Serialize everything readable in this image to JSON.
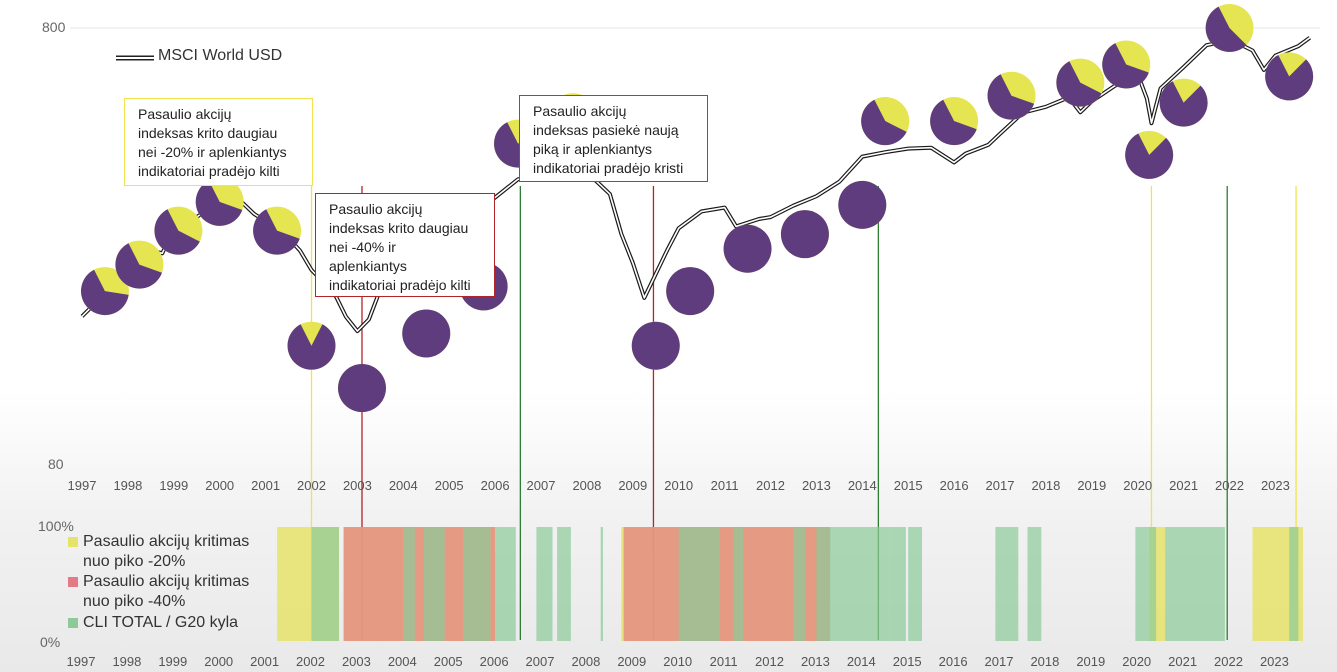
{
  "chart_data": [
    {
      "type": "line",
      "series": [
        {
          "name": "MSCI World USD",
          "x": [
            1997.0,
            1997.5,
            1998.0,
            1998.5,
            1998.75,
            1999.0,
            1999.5,
            2000.0,
            2000.25,
            2000.75,
            2001.0,
            2001.5,
            2001.75,
            2002.0,
            2002.5,
            2002.75,
            2003.0,
            2003.25,
            2003.5,
            2004.0,
            2004.5,
            2005.0,
            2005.5,
            2006.0,
            2006.5,
            2007.0,
            2007.5,
            2007.75,
            2008.0,
            2008.5,
            2008.75,
            2009.0,
            2009.25,
            2009.75,
            2010.0,
            2010.5,
            2011.0,
            2011.25,
            2011.75,
            2012.0,
            2012.5,
            2013.0,
            2013.5,
            2014.0,
            2014.5,
            2015.0,
            2015.5,
            2016.0,
            2016.25,
            2016.75,
            2017.0,
            2017.5,
            2018.0,
            2018.5,
            2018.75,
            2019.0,
            2019.5,
            2020.0,
            2020.2,
            2020.3,
            2020.5,
            2021.0,
            2021.5,
            2021.9,
            2022.0,
            2022.5,
            2022.75,
            2023.0,
            2023.5,
            2023.75
          ],
          "y": [
            175,
            200,
            230,
            250,
            245,
            275,
            300,
            320,
            335,
            305,
            285,
            265,
            250,
            220,
            200,
            175,
            160,
            175,
            200,
            245,
            265,
            270,
            300,
            330,
            355,
            375,
            400,
            405,
            380,
            330,
            270,
            235,
            190,
            250,
            280,
            300,
            315,
            280,
            290,
            300,
            310,
            330,
            360,
            400,
            420,
            425,
            420,
            400,
            410,
            430,
            465,
            505,
            530,
            560,
            505,
            550,
            590,
            620,
            560,
            480,
            580,
            660,
            720,
            750,
            760,
            700,
            650,
            690,
            720,
            760
          ]
        }
      ],
      "ylim": [
        80,
        800
      ],
      "yscale": "log",
      "yticks": [
        "800",
        "80"
      ],
      "xticks": [
        "1997",
        "1998",
        "1999",
        "2000",
        "2001",
        "2002",
        "2003",
        "2004",
        "2005",
        "2006",
        "2007",
        "2008",
        "2009",
        "2010",
        "2011",
        "2012",
        "2013",
        "2014",
        "2015",
        "2016",
        "2017",
        "2018",
        "2019",
        "2020",
        "2021",
        "2022",
        "2023"
      ],
      "legend": "top-left",
      "grid": false,
      "indicator_pies": [
        {
          "x": 1997.5,
          "y": 200,
          "fraction": 0.65
        },
        {
          "x": 1998.25,
          "y": 230,
          "fraction": 0.62
        },
        {
          "x": 1999.1,
          "y": 275,
          "fraction": 0.6
        },
        {
          "x": 2000.0,
          "y": 320,
          "fraction": 0.62
        },
        {
          "x": 2001.25,
          "y": 275,
          "fraction": 0.62
        },
        {
          "x": 2002.0,
          "y": 150,
          "fraction": 0.85
        },
        {
          "x": 2003.1,
          "y": 120,
          "fraction": 1.0
        },
        {
          "x": 2004.5,
          "y": 160,
          "fraction": 1.0
        },
        {
          "x": 2005.75,
          "y": 205,
          "fraction": 1.0
        },
        {
          "x": 2006.5,
          "y": 435,
          "fraction": 0.75
        },
        {
          "x": 2007.7,
          "y": 500,
          "fraction": 0.62
        },
        {
          "x": 2009.0,
          "y": 440,
          "fraction": 0.6
        },
        {
          "x": 2009.5,
          "y": 150,
          "fraction": 1.0
        },
        {
          "x": 2010.25,
          "y": 200,
          "fraction": 1.0
        },
        {
          "x": 2011.5,
          "y": 250,
          "fraction": 1.0
        },
        {
          "x": 2012.75,
          "y": 270,
          "fraction": 1.0
        },
        {
          "x": 2014.0,
          "y": 315,
          "fraction": 1.0
        },
        {
          "x": 2014.5,
          "y": 490,
          "fraction": 0.6
        },
        {
          "x": 2016.0,
          "y": 490,
          "fraction": 0.62
        },
        {
          "x": 2017.25,
          "y": 560,
          "fraction": 0.62
        },
        {
          "x": 2018.75,
          "y": 600,
          "fraction": 0.6
        },
        {
          "x": 2019.75,
          "y": 660,
          "fraction": 0.62
        },
        {
          "x": 2020.25,
          "y": 410,
          "fraction": 0.8
        },
        {
          "x": 2021.0,
          "y": 540,
          "fraction": 0.8
        },
        {
          "x": 2022.0,
          "y": 800,
          "fraction": 0.55
        },
        {
          "x": 2023.3,
          "y": 620,
          "fraction": 0.8
        }
      ]
    },
    {
      "type": "area",
      "ylim_labels": [
        "100%",
        "0%"
      ],
      "xticks": [
        "1997",
        "1998",
        "1999",
        "2000",
        "2001",
        "2002",
        "2003",
        "2004",
        "2005",
        "2006",
        "2007",
        "2008",
        "2009",
        "2010",
        "2011",
        "2012",
        "2013",
        "2014",
        "2015",
        "2016",
        "2017",
        "2018",
        "2019",
        "2020",
        "2021",
        "2022",
        "2023"
      ],
      "series": [
        {
          "name": "Pasaulio akcijų kritimas nuo piko -20%",
          "color": "#e6e36b",
          "periods": [
            [
              2001.25,
              2002.6
            ],
            [
              2002.7,
              2006.0
            ],
            [
              2008.75,
              2013.3
            ],
            [
              2020.25,
              2020.6
            ],
            [
              2022.5,
              2023.6
            ]
          ]
        },
        {
          "name": "Pasaulio akcijų kritimas nuo piko -40%",
          "color": "#e47a86",
          "periods": [
            [
              2002.7,
              2006.0
            ],
            [
              2008.8,
              2013.3
            ]
          ]
        },
        {
          "name": "CLI TOTAL / G20 kyla",
          "color": "#8cca9a",
          "periods": [
            [
              2002.0,
              2002.6
            ],
            [
              2004.0,
              2004.25
            ],
            [
              2004.45,
              2004.9
            ],
            [
              2005.3,
              2005.9
            ],
            [
              2006.0,
              2006.45
            ],
            [
              2006.9,
              2007.25
            ],
            [
              2007.35,
              2007.65
            ],
            [
              2008.3,
              2008.35
            ],
            [
              2010.0,
              2010.9
            ],
            [
              2011.2,
              2011.4
            ],
            [
              2012.5,
              2012.75
            ],
            [
              2013.0,
              2014.6
            ],
            [
              2014.6,
              2014.95
            ],
            [
              2015.0,
              2015.3
            ],
            [
              2016.9,
              2017.4
            ],
            [
              2017.6,
              2017.9
            ],
            [
              2019.95,
              2020.4
            ],
            [
              2020.6,
              2020.9
            ],
            [
              2020.9,
              2021.9
            ],
            [
              2023.3,
              2023.5
            ]
          ]
        }
      ]
    }
  ],
  "annotations": [
    {
      "text": "Pasaulio akcijų\nindeksas krito daugiau\nnei -20% ir aplenkiantys\nindikatoriai pradėjo kilti",
      "border": "#f2e24e",
      "year": 2002.0
    },
    {
      "text": "Pasaulio akcijų\nindeksas krito daugiau\nnei -40% ir\naplenkiantys\nindikatoriai pradėjo kilti",
      "border": "#b02528",
      "year": 2003.1
    },
    {
      "text": "Pasaulio akcijų\nindeksas pasiekė naują\npiką ir aplenkiantys\nindikatoriai pradėjo kristi",
      "border": "#2e7d32",
      "year": 2006.55
    }
  ],
  "vertical_markers": [
    {
      "year": 2002.0,
      "color": "#f2e24e"
    },
    {
      "year": 2003.1,
      "color": "#b02528"
    },
    {
      "year": 2006.55,
      "color": "#2e7d32"
    },
    {
      "year": 2009.45,
      "color": "#b02528"
    },
    {
      "year": 2014.35,
      "color": "#2e7d32"
    },
    {
      "year": 2020.3,
      "color": "#f2e24e"
    },
    {
      "year": 2021.95,
      "color": "#2e7d32"
    },
    {
      "year": 2023.45,
      "color": "#f2e24e"
    }
  ],
  "colors": {
    "pie_yellow": "#e4e551",
    "pie_purple": "#5e3c7e",
    "line": "#1a1a1a"
  }
}
